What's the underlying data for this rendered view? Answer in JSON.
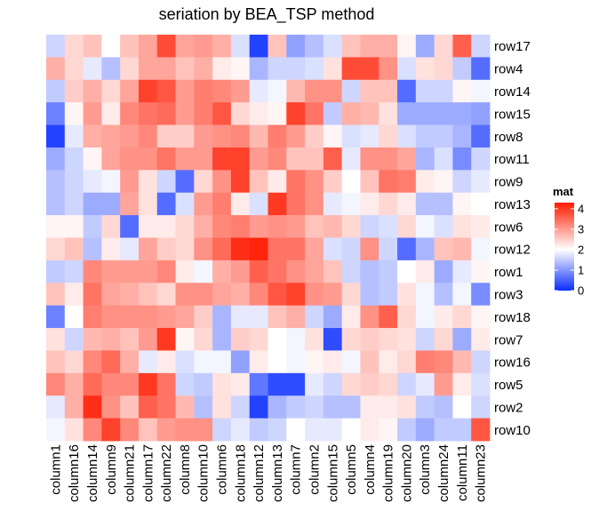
{
  "chart_data": {
    "type": "heatmap",
    "title": "seriation by BEA_TSP method",
    "legend": {
      "title": "mat",
      "placement": "right",
      "ticks": [
        0,
        1,
        2,
        3,
        4
      ]
    },
    "color_scale": {
      "min": 0,
      "mid": 2,
      "max": 4.3,
      "low": "#0a2dff",
      "mid_color": "#ffffff",
      "high": "#ff1a00"
    },
    "columns": [
      "column1",
      "column16",
      "column14",
      "column9",
      "column21",
      "column17",
      "column22",
      "column8",
      "column10",
      "column6",
      "column18",
      "column12",
      "column13",
      "column7",
      "column2",
      "column15",
      "column5",
      "column4",
      "column19",
      "column20",
      "column3",
      "column24",
      "column11",
      "column23"
    ],
    "rows": [
      "row17",
      "row4",
      "row14",
      "row15",
      "row8",
      "row11",
      "row9",
      "row13",
      "row6",
      "row12",
      "row1",
      "row3",
      "row18",
      "row7",
      "row16",
      "row5",
      "row2",
      "row10"
    ],
    "values": [
      [
        1.6,
        2.4,
        2.6,
        2.0,
        2.6,
        2.9,
        3.8,
        2.9,
        3.0,
        2.8,
        1.7,
        0.2,
        2.6,
        1.1,
        1.4,
        1.7,
        2.6,
        2.8,
        2.8,
        2.1,
        1.2,
        2.4,
        3.6,
        1.6
      ],
      [
        2.8,
        2.4,
        1.8,
        1.4,
        2.4,
        2.9,
        2.9,
        2.6,
        2.8,
        2.2,
        2.1,
        1.3,
        1.6,
        1.6,
        1.7,
        2.3,
        3.8,
        3.8,
        3.1,
        1.7,
        2.3,
        2.4,
        1.5,
        0.6
      ],
      [
        1.5,
        2.5,
        2.8,
        2.4,
        2.9,
        3.9,
        3.7,
        3.0,
        3.3,
        3.2,
        3.0,
        1.8,
        1.9,
        2.7,
        3.1,
        3.1,
        1.6,
        2.6,
        2.6,
        0.6,
        1.6,
        1.6,
        2.1,
        1.9
      ],
      [
        0.8,
        2.1,
        3.0,
        2.2,
        3.2,
        3.4,
        3.5,
        3.0,
        3.3,
        3.7,
        2.4,
        2.2,
        2.1,
        3.9,
        3.4,
        1.5,
        2.8,
        2.7,
        2.3,
        1.2,
        1.2,
        1.2,
        1.2,
        1.1
      ],
      [
        0.2,
        1.8,
        2.8,
        2.9,
        3.0,
        3.2,
        2.5,
        2.5,
        3.0,
        3.1,
        3.2,
        2.7,
        3.3,
        3.0,
        2.5,
        2.1,
        1.7,
        1.8,
        2.4,
        1.7,
        1.5,
        1.5,
        1.3,
        0.6
      ],
      [
        1.2,
        1.6,
        2.1,
        2.9,
        3.1,
        3.1,
        3.4,
        3.0,
        3.0,
        3.9,
        3.9,
        3.0,
        3.2,
        2.6,
        2.6,
        3.6,
        1.8,
        3.1,
        3.1,
        2.9,
        1.3,
        1.7,
        0.9,
        1.6
      ],
      [
        1.4,
        1.6,
        1.8,
        1.9,
        3.0,
        2.3,
        1.6,
        0.6,
        2.4,
        3.1,
        3.9,
        2.6,
        2.2,
        3.4,
        3.1,
        2.5,
        2.0,
        2.6,
        3.4,
        3.3,
        2.2,
        2.1,
        1.6,
        1.8
      ],
      [
        1.4,
        1.6,
        1.2,
        1.2,
        2.9,
        2.3,
        0.6,
        1.7,
        3.0,
        3.3,
        2.2,
        1.7,
        4.0,
        3.4,
        3.1,
        1.8,
        1.9,
        2.2,
        2.4,
        2.2,
        1.4,
        1.4,
        2.1,
        2.0
      ],
      [
        2.1,
        2.1,
        1.5,
        2.4,
        0.6,
        2.2,
        2.2,
        2.4,
        2.8,
        3.2,
        3.3,
        3.0,
        3.1,
        3.0,
        2.6,
        2.7,
        2.4,
        1.6,
        1.7,
        2.4,
        1.9,
        1.7,
        2.3,
        2.2
      ],
      [
        2.4,
        2.6,
        1.4,
        2.2,
        1.8,
        2.9,
        2.5,
        2.4,
        3.1,
        3.5,
        4.1,
        4.2,
        3.4,
        3.4,
        2.9,
        1.7,
        1.6,
        3.1,
        1.6,
        0.6,
        1.3,
        2.6,
        2.7,
        1.9
      ],
      [
        1.5,
        1.6,
        3.2,
        3.0,
        3.0,
        3.0,
        3.2,
        2.2,
        1.9,
        2.8,
        3.0,
        3.6,
        3.4,
        3.1,
        2.9,
        2.6,
        1.6,
        1.4,
        1.5,
        2.0,
        2.2,
        1.2,
        1.8,
        2.1
      ],
      [
        2.6,
        2.2,
        3.4,
        2.9,
        2.8,
        2.6,
        2.4,
        3.1,
        3.1,
        2.9,
        2.8,
        3.2,
        3.7,
        3.9,
        3.1,
        3.0,
        2.4,
        1.4,
        1.5,
        2.3,
        1.9,
        1.4,
        1.9,
        0.9
      ],
      [
        0.8,
        2.0,
        3.3,
        3.1,
        3.1,
        3.1,
        3.0,
        2.9,
        2.5,
        1.3,
        1.8,
        1.8,
        2.6,
        2.8,
        1.6,
        1.2,
        2.2,
        3.1,
        3.6,
        2.4,
        1.9,
        2.2,
        2.4,
        2.1
      ],
      [
        2.3,
        1.6,
        2.7,
        2.8,
        2.6,
        3.0,
        4.0,
        2.1,
        2.4,
        1.3,
        2.5,
        2.4,
        2.0,
        1.9,
        2.3,
        0.3,
        2.4,
        2.5,
        2.4,
        2.3,
        1.6,
        2.4,
        1.2,
        2.2
      ],
      [
        2.6,
        2.4,
        3.2,
        3.5,
        2.8,
        1.8,
        2.2,
        1.7,
        1.9,
        1.9,
        1.1,
        2.2,
        2.0,
        1.9,
        2.1,
        2.2,
        1.9,
        2.6,
        2.2,
        2.4,
        3.3,
        3.2,
        2.7,
        1.6
      ],
      [
        3.2,
        2.8,
        3.5,
        3.2,
        3.2,
        4.0,
        3.4,
        1.6,
        1.5,
        2.3,
        2.2,
        0.7,
        0.3,
        0.3,
        1.8,
        1.6,
        2.4,
        2.5,
        2.4,
        1.6,
        1.8,
        3.0,
        2.2,
        1.7
      ],
      [
        1.8,
        2.8,
        4.1,
        3.1,
        2.6,
        3.6,
        3.4,
        2.7,
        1.4,
        2.3,
        1.6,
        0.2,
        1.3,
        1.5,
        1.6,
        1.4,
        1.4,
        2.2,
        2.2,
        2.3,
        1.5,
        1.4,
        2.0,
        1.6
      ],
      [
        1.9,
        2.3,
        3.2,
        3.9,
        3.2,
        2.6,
        3.0,
        3.1,
        3.1,
        1.6,
        1.8,
        1.5,
        1.6,
        2.0,
        1.8,
        1.8,
        2.0,
        2.2,
        2.1,
        1.5,
        1.2,
        1.5,
        1.5,
        3.7
      ]
    ]
  }
}
